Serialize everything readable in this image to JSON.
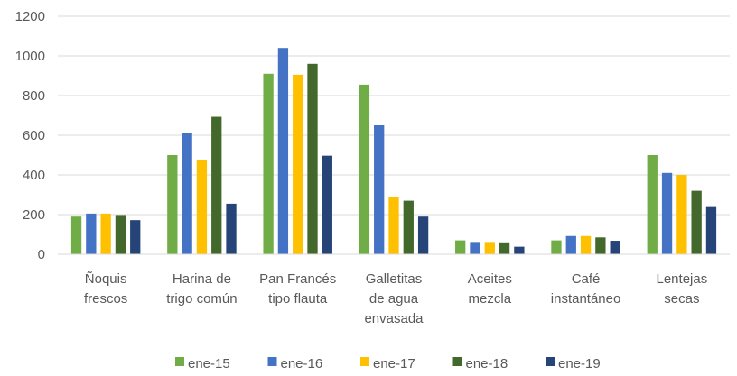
{
  "chart_data": {
    "type": "bar",
    "title": "",
    "xlabel": "",
    "ylabel": "",
    "ylim": [
      0,
      1200
    ],
    "yticks": [
      0,
      200,
      400,
      600,
      800,
      1000,
      1200
    ],
    "grid": true,
    "legend_position": "bottom",
    "categories": [
      [
        "Ñoquis",
        "frescos"
      ],
      [
        "Harina de",
        "trigo común"
      ],
      [
        "Pan Francés",
        "tipo flauta"
      ],
      [
        "Galletitas",
        "de agua",
        "envasada"
      ],
      [
        "Aceites",
        "mezcla"
      ],
      [
        "Café",
        "instantáneo"
      ],
      [
        "Lentejas",
        "secas"
      ]
    ],
    "series": [
      {
        "name": "ene-15",
        "color": "#70AD47",
        "values": [
          190,
          500,
          910,
          855,
          70,
          70,
          500
        ]
      },
      {
        "name": "ene-16",
        "color": "#4472C4",
        "values": [
          205,
          610,
          1040,
          650,
          62,
          92,
          410
        ]
      },
      {
        "name": "ene-17",
        "color": "#FFC000",
        "values": [
          205,
          475,
          905,
          288,
          62,
          92,
          400
        ]
      },
      {
        "name": "ene-18",
        "color": "#43682B",
        "values": [
          198,
          693,
          960,
          270,
          60,
          85,
          320
        ]
      },
      {
        "name": "ene-19",
        "color": "#264478",
        "values": [
          172,
          255,
          497,
          190,
          38,
          68,
          238
        ]
      }
    ]
  }
}
